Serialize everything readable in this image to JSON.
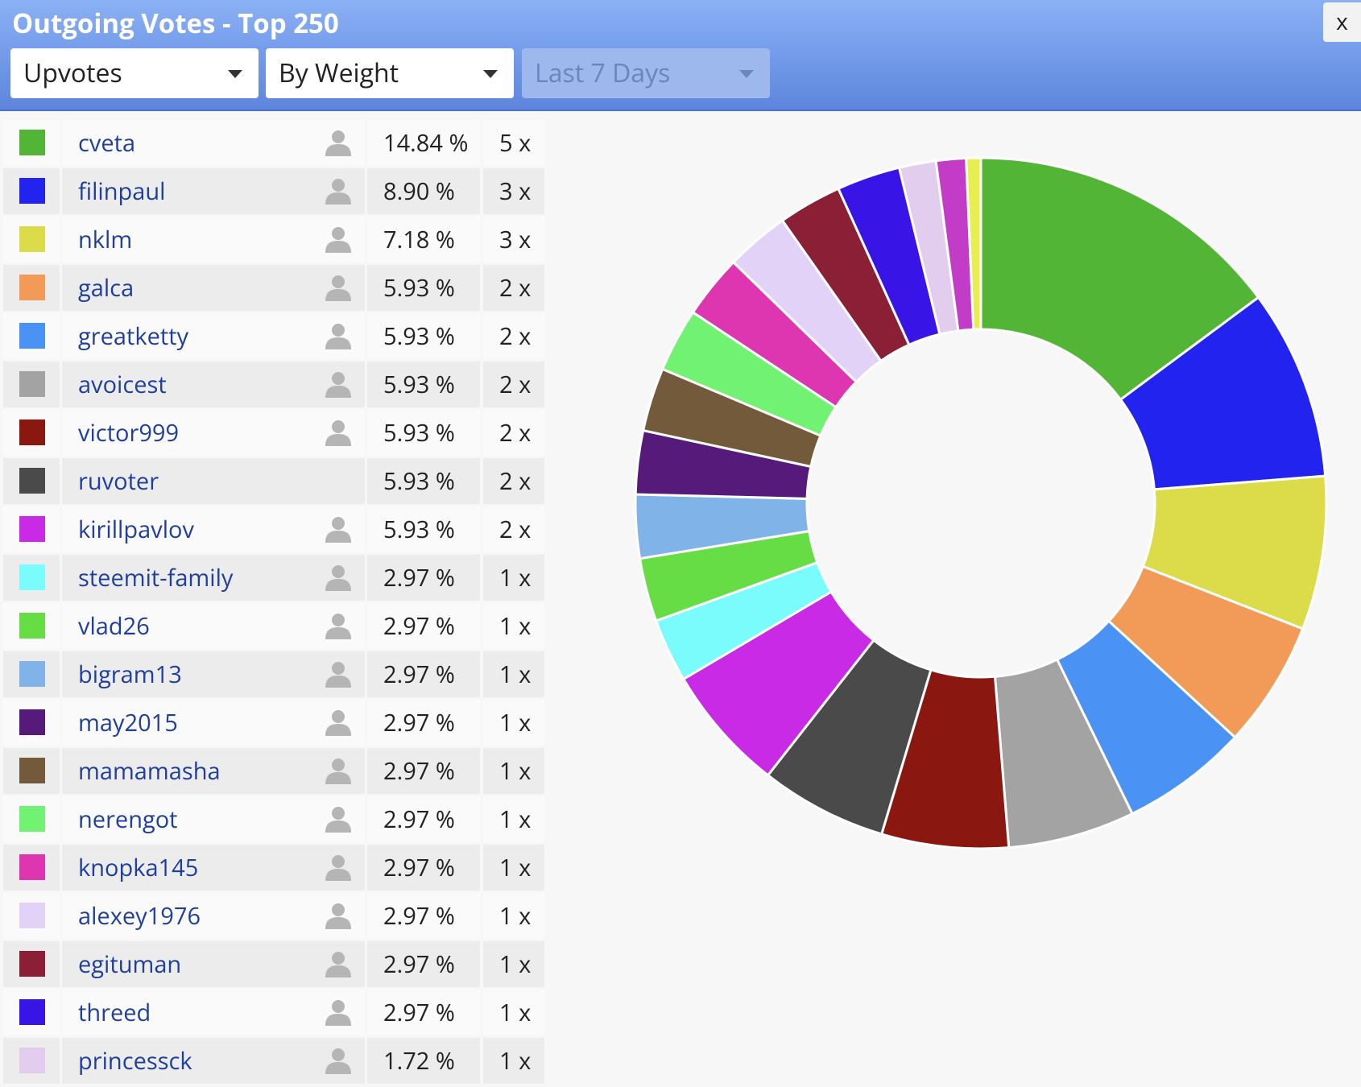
{
  "header": {
    "title": "Outgoing Votes - Top 250",
    "close": "x"
  },
  "controls": [
    {
      "label": "Upvotes",
      "disabled": false
    },
    {
      "label": "By Weight",
      "disabled": false
    },
    {
      "label": "Last 7 Days",
      "disabled": true
    }
  ],
  "chart_data": {
    "type": "pie",
    "rows": [
      {
        "name": "cveta",
        "color": "#52b535",
        "percent": 14.84,
        "percent_label": "14.84 %",
        "count": 5,
        "count_label": "5 x",
        "avatar": true
      },
      {
        "name": "filinpaul",
        "color": "#2323f0",
        "percent": 8.9,
        "percent_label": "8.90 %",
        "count": 3,
        "count_label": "3 x",
        "avatar": true
      },
      {
        "name": "nklm",
        "color": "#dcdc4a",
        "percent": 7.18,
        "percent_label": "7.18 %",
        "count": 3,
        "count_label": "3 x",
        "avatar": true
      },
      {
        "name": "galca",
        "color": "#f29a58",
        "percent": 5.93,
        "percent_label": "5.93 %",
        "count": 2,
        "count_label": "2 x",
        "avatar": true
      },
      {
        "name": "greatketty",
        "color": "#4a93f5",
        "percent": 5.93,
        "percent_label": "5.93 %",
        "count": 2,
        "count_label": "2 x",
        "avatar": true
      },
      {
        "name": "avoicest",
        "color": "#a3a3a3",
        "percent": 5.93,
        "percent_label": "5.93 %",
        "count": 2,
        "count_label": "2 x",
        "avatar": true
      },
      {
        "name": "victor999",
        "color": "#8a1710",
        "percent": 5.93,
        "percent_label": "5.93 %",
        "count": 2,
        "count_label": "2 x",
        "avatar": true
      },
      {
        "name": "ruvoter",
        "color": "#4a4a4a",
        "percent": 5.93,
        "percent_label": "5.93 %",
        "count": 2,
        "count_label": "2 x",
        "avatar": false
      },
      {
        "name": "kirillpavlov",
        "color": "#c82ae6",
        "percent": 5.93,
        "percent_label": "5.93 %",
        "count": 2,
        "count_label": "2 x",
        "avatar": true
      },
      {
        "name": "steemit-family",
        "color": "#7afcfc",
        "percent": 2.97,
        "percent_label": "2.97 %",
        "count": 1,
        "count_label": "1 x",
        "avatar": true
      },
      {
        "name": "vlad26",
        "color": "#66dd44",
        "percent": 2.97,
        "percent_label": "2.97 %",
        "count": 1,
        "count_label": "1 x",
        "avatar": true
      },
      {
        "name": "bigram13",
        "color": "#80b4e8",
        "percent": 2.97,
        "percent_label": "2.97 %",
        "count": 1,
        "count_label": "1 x",
        "avatar": true
      },
      {
        "name": "may2015",
        "color": "#561a7a",
        "percent": 2.97,
        "percent_label": "2.97 %",
        "count": 1,
        "count_label": "1 x",
        "avatar": true
      },
      {
        "name": "mamamasha",
        "color": "#735a3a",
        "percent": 2.97,
        "percent_label": "2.97 %",
        "count": 1,
        "count_label": "1 x",
        "avatar": true
      },
      {
        "name": "nerengot",
        "color": "#72f272",
        "percent": 2.97,
        "percent_label": "2.97 %",
        "count": 1,
        "count_label": "1 x",
        "avatar": true
      },
      {
        "name": "knopka145",
        "color": "#dd36b0",
        "percent": 2.97,
        "percent_label": "2.97 %",
        "count": 1,
        "count_label": "1 x",
        "avatar": true
      },
      {
        "name": "alexey1976",
        "color": "#e3d2f7",
        "percent": 2.97,
        "percent_label": "2.97 %",
        "count": 1,
        "count_label": "1 x",
        "avatar": true
      },
      {
        "name": "egituman",
        "color": "#8a1f35",
        "percent": 2.97,
        "percent_label": "2.97 %",
        "count": 1,
        "count_label": "1 x",
        "avatar": true
      },
      {
        "name": "threed",
        "color": "#3814e6",
        "percent": 2.97,
        "percent_label": "2.97 %",
        "count": 1,
        "count_label": "1 x",
        "avatar": true
      },
      {
        "name": "princessck",
        "color": "#e3cdee",
        "percent": 1.72,
        "percent_label": "1.72 %",
        "count": 1,
        "count_label": "1 x",
        "avatar": true
      }
    ],
    "extra_slices": [
      {
        "color": "#c23cc8",
        "percent": 1.4
      },
      {
        "color": "#e6ee50",
        "percent": 0.68
      }
    ]
  }
}
